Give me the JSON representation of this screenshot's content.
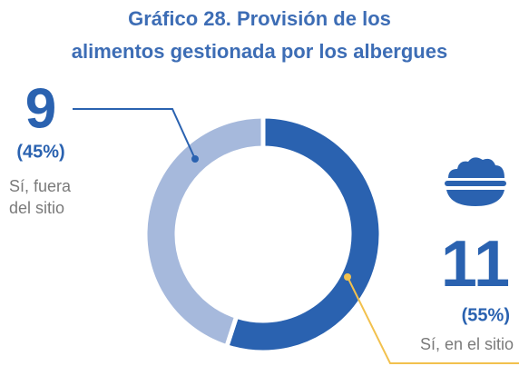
{
  "chart_data": {
    "type": "donut",
    "title": "Gráfico 28. Provisión de los alimentos gestionada por los albergues",
    "categories": [
      "Sí, en el sitio",
      "Sí, fuera del sitio"
    ],
    "values": [
      11,
      9
    ],
    "shares": [
      55,
      45
    ],
    "share_labels": [
      "(55%)",
      "(45%)"
    ],
    "colors": [
      "#2a62b0",
      "#a6b9dc"
    ]
  }
}
